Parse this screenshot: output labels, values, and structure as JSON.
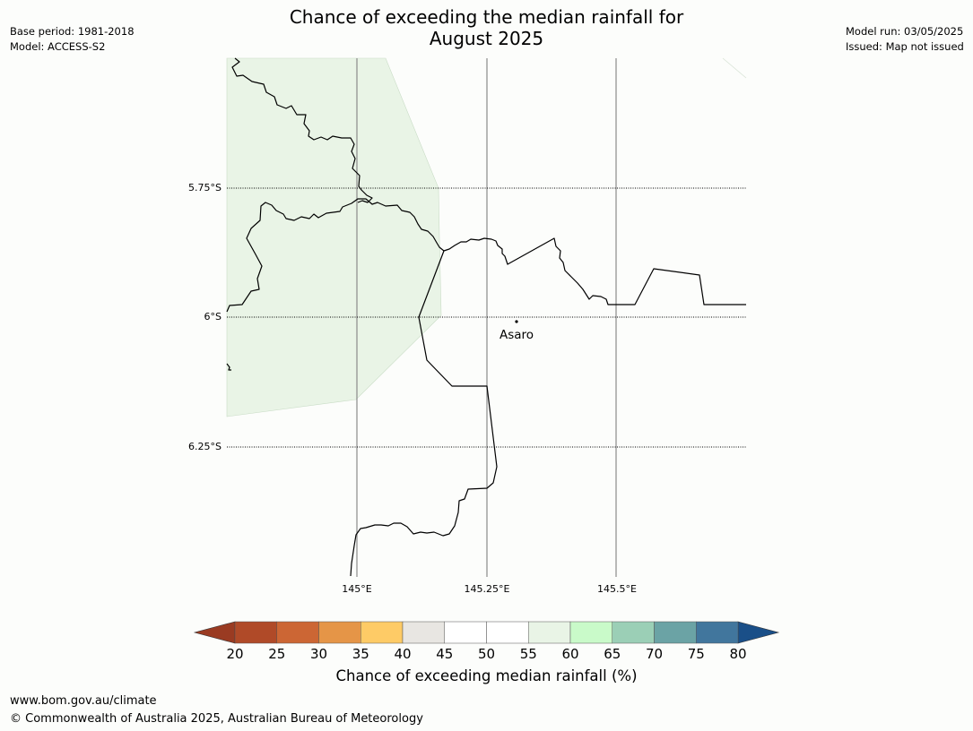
{
  "title_line1": "Chance of exceeding the median rainfall for",
  "title_line2": "August 2025",
  "meta": {
    "base_period": "Base period: 1981-2018",
    "model": "Model: ACCESS-S2",
    "model_run": "Model run: 03/05/2025",
    "issued": "Issued: Map not issued"
  },
  "map": {
    "lat_labels": [
      "5.75°S",
      "6°S",
      "6.25°S"
    ],
    "lon_labels": [
      "145°E",
      "145.25°E",
      "145.5°E"
    ],
    "place": {
      "name": "Asaro"
    },
    "shaded_region_category": "55-60"
  },
  "colorbar": {
    "title": "Chance of exceeding median rainfall (%)",
    "tick_labels": [
      "20",
      "25",
      "30",
      "35",
      "40",
      "45",
      "50",
      "55",
      "60",
      "65",
      "70",
      "75",
      "80"
    ],
    "under_color": "#9a3b22",
    "over_color": "#1a4f88",
    "colors": [
      "#b04a28",
      "#cc6634",
      "#e59547",
      "#fecb66",
      "#e8e6e2",
      "#ffffff",
      "#ffffff",
      "#e9f4e6",
      "#c9fac9",
      "#9bcfb6",
      "#6ba3a5",
      "#41769d"
    ]
  },
  "footer": {
    "url": "www.bom.gov.au/climate",
    "copyright": "© Commonwealth of Australia 2025, Australian Bureau of Meteorology"
  }
}
